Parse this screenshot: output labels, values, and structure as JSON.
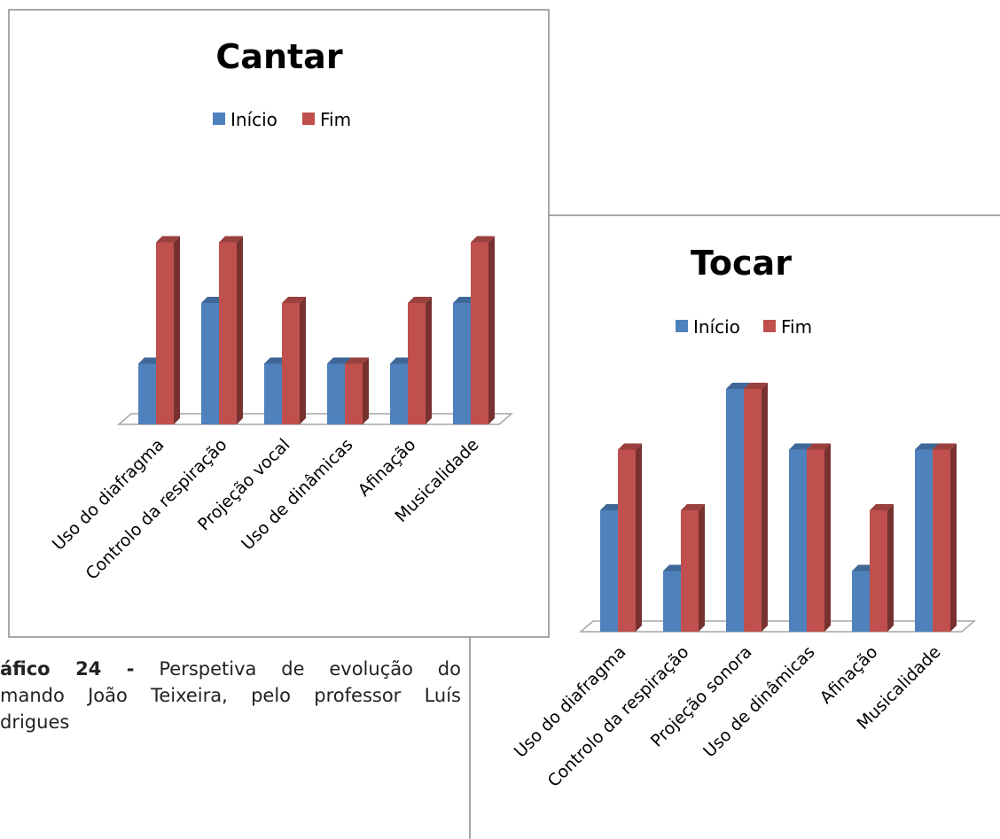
{
  "colors": {
    "series1": "#4f81bd",
    "series2": "#c0504d",
    "frame": "#8c8c8c",
    "floor": "#a6a6a6"
  },
  "caption": {
    "label": "áfico 24 -",
    "line1_text": "Perspetiva de evolução do",
    "line2": "mando João Teixeira, pelo professor Luís",
    "line3": "drigues"
  },
  "chart_data": [
    {
      "type": "bar",
      "title": "Cantar",
      "legend_position": "top",
      "grid": false,
      "categories": [
        "Uso do diafragma",
        "Controlo da respiração",
        "Projeção vocal",
        "Uso de dinâmicas",
        "Afinação",
        "Musicalidade"
      ],
      "series": [
        {
          "name": "Início",
          "values": [
            1,
            2,
            1,
            1,
            1,
            2
          ]
        },
        {
          "name": "Fim",
          "values": [
            3,
            3,
            2,
            1,
            2,
            3
          ]
        }
      ],
      "ylim": [
        0,
        3
      ]
    },
    {
      "type": "bar",
      "title": "Tocar",
      "legend_position": "top",
      "grid": false,
      "categories": [
        "Uso do diafragma",
        "Controlo da respiração",
        "Projeção sonora",
        "Uso de dinâmicas",
        "Afinação",
        "Musicalidade"
      ],
      "series": [
        {
          "name": "Início",
          "values": [
            2,
            1,
            4,
            3,
            1,
            3
          ]
        },
        {
          "name": "Fim",
          "values": [
            3,
            2,
            4,
            3,
            2,
            3
          ]
        }
      ],
      "ylim": [
        0,
        4
      ]
    }
  ]
}
